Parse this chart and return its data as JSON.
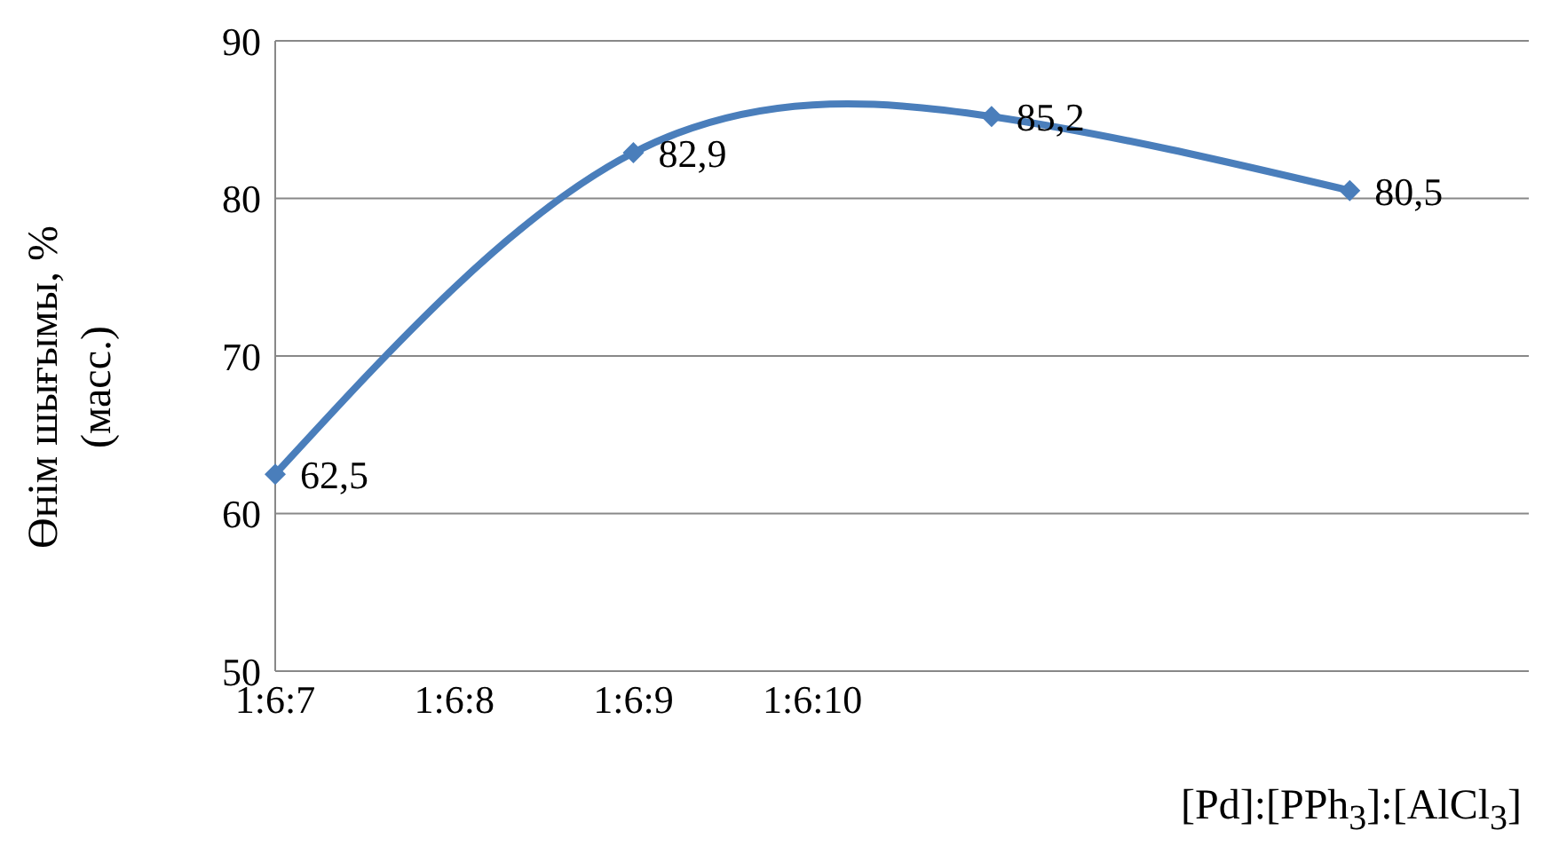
{
  "chart_data": {
    "type": "line",
    "xlabel": "[Pd]:[PPh$_{3}$]:[AlCl$_{3}$]",
    "ylabel": "Өнім шығымы, %\n(масс.)",
    "categories": [
      "1:6:7",
      "1:6:8",
      "1:6:9",
      "1:6:10",
      null,
      null,
      null,
      null
    ],
    "series": [
      {
        "color": "#4a7ebb",
        "values": [
          62.5,
          null,
          82.9,
          null,
          85.2,
          null,
          80.5,
          null
        ],
        "value_labels": [
          "62,5",
          null,
          "82,9",
          null,
          "85,2",
          null,
          "80,5",
          null
        ]
      }
    ],
    "ylim": [
      50,
      90
    ],
    "yticks": [
      50,
      60,
      70,
      80,
      90
    ],
    "grid": "y",
    "legend": false,
    "marker": "diamond",
    "line_style": "solid"
  }
}
